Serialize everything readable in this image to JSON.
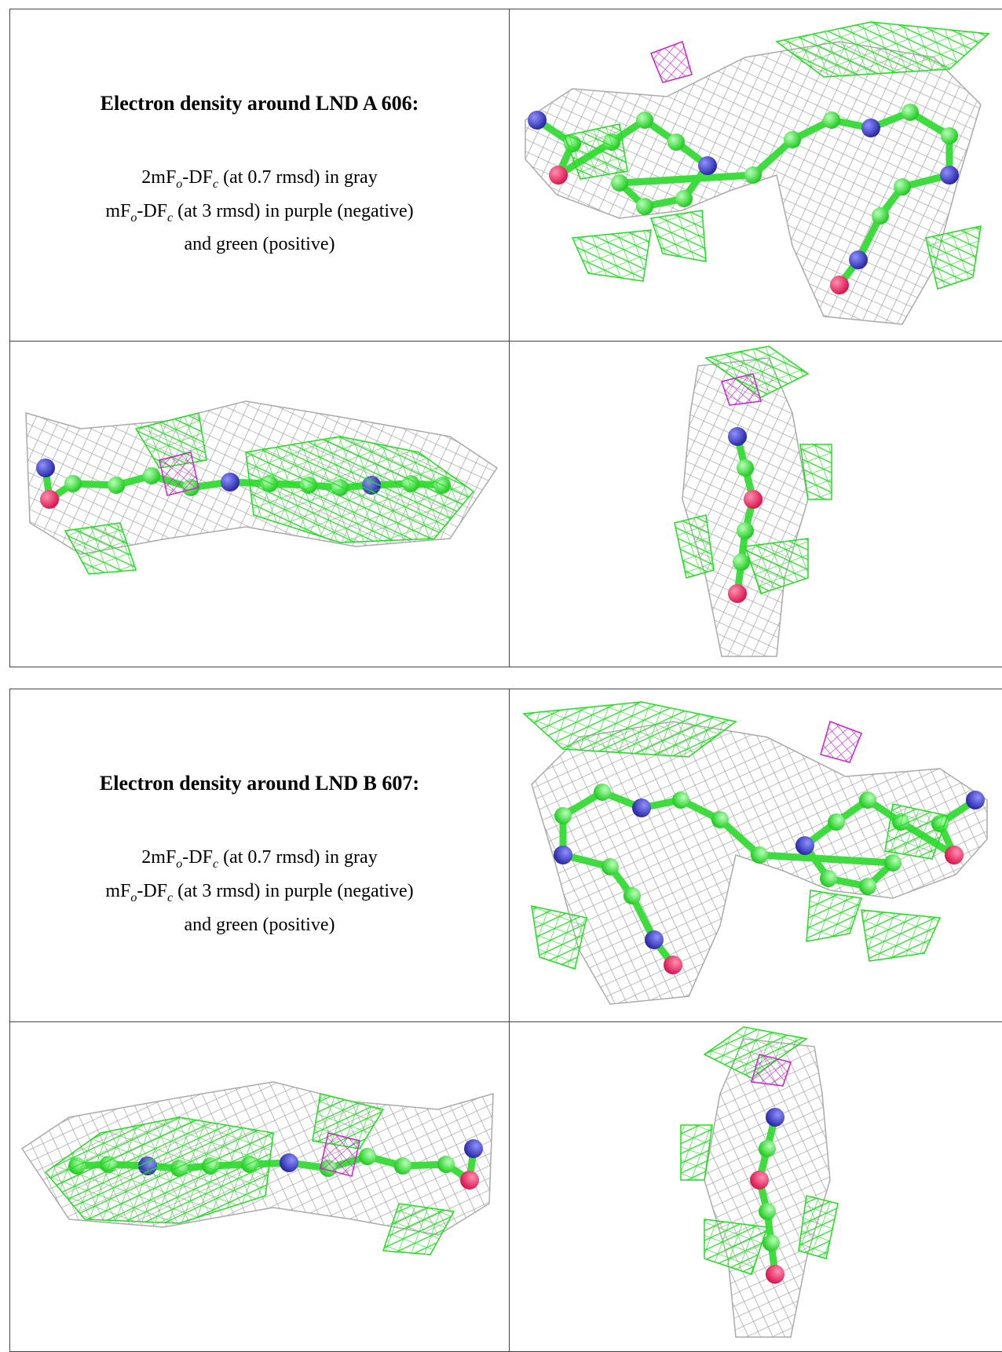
{
  "tables": [
    {
      "title": "Electron density around LND A 606:",
      "lines": [
        [
          {
            "text": "2mF"
          },
          {
            "text": "o",
            "sub": true
          },
          {
            "text": "-DF"
          },
          {
            "text": "c",
            "sub": true
          },
          {
            "text": " (at 0.7 rmsd) in gray"
          }
        ],
        [
          {
            "text": "mF"
          },
          {
            "text": "o",
            "sub": true
          },
          {
            "text": "-DF"
          },
          {
            "text": "c",
            "sub": true
          },
          {
            "text": " (at 3 rmsd) in purple (negative)"
          }
        ],
        [
          {
            "text": "and green (positive)"
          }
        ]
      ]
    },
    {
      "title": "Electron density around LND B 607:",
      "lines": [
        [
          {
            "text": "2mF"
          },
          {
            "text": "o",
            "sub": true
          },
          {
            "text": "-DF"
          },
          {
            "text": "c",
            "sub": true
          },
          {
            "text": " (at 0.7 rmsd) in gray"
          }
        ],
        [
          {
            "text": "mF"
          },
          {
            "text": "o",
            "sub": true
          },
          {
            "text": "-DF"
          },
          {
            "text": "c",
            "sub": true
          },
          {
            "text": " (at 3 rmsd) in purple (negative)"
          }
        ],
        [
          {
            "text": "and green (positive)"
          }
        ]
      ]
    }
  ]
}
